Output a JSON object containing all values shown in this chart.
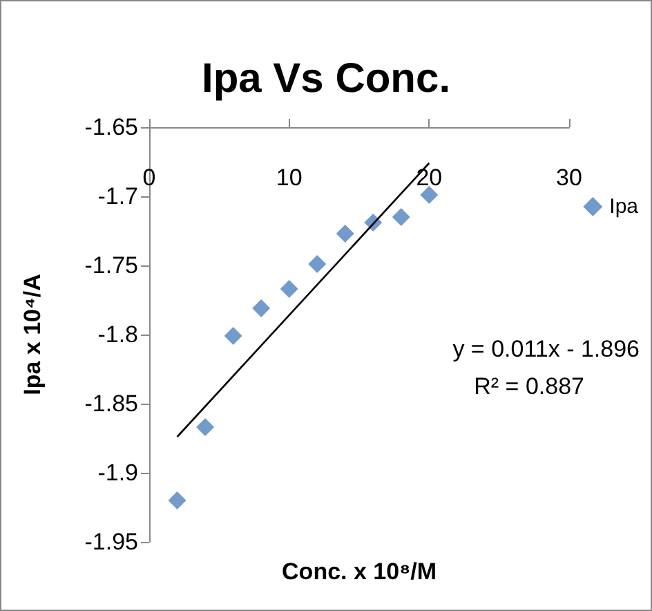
{
  "chart_data": {
    "type": "scatter",
    "title": "Ipa Vs Conc.",
    "xlabel": "Conc. x 10⁸/M",
    "ylabel": "Ipa x 10⁴/A",
    "x": [
      2,
      4,
      6,
      8,
      10,
      12,
      14,
      16,
      18,
      20
    ],
    "series": [
      {
        "name": "Ipa",
        "color": "#4f81bd",
        "values": [
          -1.92,
          -1.867,
          -1.801,
          -1.781,
          -1.767,
          -1.749,
          -1.727,
          -1.719,
          -1.715,
          -1.699
        ]
      },
      {
        "type": "line",
        "marker": "none",
        "color": "#000000",
        "x": [
          2,
          20
        ],
        "values": [
          -1.874,
          -1.676
        ]
      }
    ],
    "xlim": [
      0,
      30
    ],
    "xticks": [
      0,
      10,
      20,
      30
    ],
    "ylim": [
      -1.95,
      -1.65
    ],
    "yticks": [
      -1.95,
      -1.9,
      -1.85,
      -1.8,
      -1.75,
      -1.7,
      -1.65
    ],
    "marker": "diamond",
    "grid": false,
    "legend": "right",
    "annotations": [
      "y = 0.011x - 1.896",
      "R² = 0.887"
    ]
  }
}
